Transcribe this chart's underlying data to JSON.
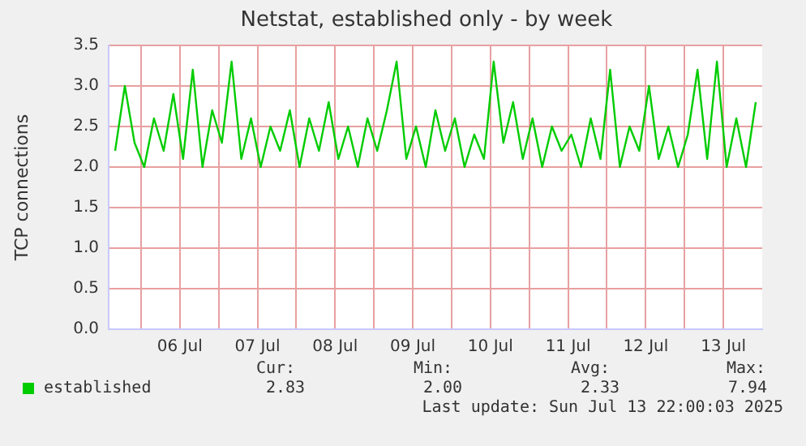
{
  "chart_data": {
    "type": "line",
    "title": "Netstat, established only - by week",
    "ylabel": "TCP connections",
    "x": [
      "2025-07-05T16:00",
      "2025-07-05T19:00",
      "2025-07-05T22:00",
      "2025-07-06T01:00",
      "2025-07-06T04:00",
      "2025-07-06T07:00",
      "2025-07-06T10:00",
      "2025-07-06T13:00",
      "2025-07-06T16:00",
      "2025-07-06T19:00",
      "2025-07-06T22:00",
      "2025-07-07T01:00",
      "2025-07-07T04:00",
      "2025-07-07T07:00",
      "2025-07-07T10:00",
      "2025-07-07T13:00",
      "2025-07-07T16:00",
      "2025-07-07T19:00",
      "2025-07-07T22:00",
      "2025-07-08T01:00",
      "2025-07-08T04:00",
      "2025-07-08T07:00",
      "2025-07-08T10:00",
      "2025-07-08T13:00",
      "2025-07-08T16:00",
      "2025-07-08T19:00",
      "2025-07-08T22:00",
      "2025-07-09T01:00",
      "2025-07-09T04:00",
      "2025-07-09T07:00",
      "2025-07-09T10:00",
      "2025-07-09T13:00",
      "2025-07-09T16:00",
      "2025-07-09T19:00",
      "2025-07-09T22:00",
      "2025-07-10T01:00",
      "2025-07-10T04:00",
      "2025-07-10T07:00",
      "2025-07-10T10:00",
      "2025-07-10T13:00",
      "2025-07-10T16:00",
      "2025-07-10T19:00",
      "2025-07-10T22:00",
      "2025-07-11T01:00",
      "2025-07-11T04:00",
      "2025-07-11T07:00",
      "2025-07-11T10:00",
      "2025-07-11T13:00",
      "2025-07-11T16:00",
      "2025-07-11T19:00",
      "2025-07-11T22:00",
      "2025-07-12T01:00",
      "2025-07-12T04:00",
      "2025-07-12T07:00",
      "2025-07-12T10:00",
      "2025-07-12T13:00",
      "2025-07-12T16:00",
      "2025-07-12T19:00",
      "2025-07-12T22:00",
      "2025-07-13T01:00",
      "2025-07-13T04:00",
      "2025-07-13T07:00",
      "2025-07-13T10:00",
      "2025-07-13T13:00",
      "2025-07-13T16:00",
      "2025-07-13T19:00",
      "2025-07-13T22:00"
    ],
    "series": [
      {
        "name": "established",
        "color": "#00cc00",
        "values": [
          2.2,
          3.0,
          2.3,
          2.0,
          2.6,
          2.2,
          2.9,
          2.1,
          3.2,
          2.0,
          2.7,
          2.3,
          3.3,
          2.1,
          2.6,
          2.0,
          2.5,
          2.2,
          2.7,
          2.0,
          2.6,
          2.2,
          2.8,
          2.1,
          2.5,
          2.0,
          2.6,
          2.2,
          2.7,
          3.3,
          2.1,
          2.5,
          2.0,
          2.7,
          2.2,
          2.6,
          2.0,
          2.4,
          2.1,
          3.3,
          2.3,
          2.8,
          2.1,
          2.6,
          2.0,
          2.5,
          2.2,
          2.4,
          2.0,
          2.6,
          2.1,
          3.2,
          2.0,
          2.5,
          2.2,
          3.0,
          2.1,
          2.5,
          2.0,
          2.4,
          3.2,
          2.1,
          3.3,
          2.0,
          2.6,
          2.0,
          2.8
        ]
      }
    ],
    "xlim": [
      "2025-07-05T14:00",
      "2025-07-14T00:00"
    ],
    "xticks": [
      {
        "value": "2025-07-06T00:00",
        "label": null
      },
      {
        "value": "2025-07-06T12:00",
        "label": "06 Jul"
      },
      {
        "value": "2025-07-07T00:00",
        "label": null
      },
      {
        "value": "2025-07-07T12:00",
        "label": "07 Jul"
      },
      {
        "value": "2025-07-08T00:00",
        "label": null
      },
      {
        "value": "2025-07-08T12:00",
        "label": "08 Jul"
      },
      {
        "value": "2025-07-09T00:00",
        "label": null
      },
      {
        "value": "2025-07-09T12:00",
        "label": "09 Jul"
      },
      {
        "value": "2025-07-10T00:00",
        "label": null
      },
      {
        "value": "2025-07-10T12:00",
        "label": "10 Jul"
      },
      {
        "value": "2025-07-11T00:00",
        "label": null
      },
      {
        "value": "2025-07-11T12:00",
        "label": "11 Jul"
      },
      {
        "value": "2025-07-12T00:00",
        "label": null
      },
      {
        "value": "2025-07-12T12:00",
        "label": "12 Jul"
      },
      {
        "value": "2025-07-13T00:00",
        "label": null
      },
      {
        "value": "2025-07-13T12:00",
        "label": "13 Jul"
      }
    ],
    "ylim": [
      0,
      3.5
    ],
    "yticks": [
      {
        "value": 0,
        "label": "0.0"
      },
      0.5,
      {
        "value": 1,
        "label": "1.0"
      },
      1.5,
      {
        "value": 2,
        "label": "2.0"
      },
      2.5,
      {
        "value": 3,
        "label": "3.0"
      },
      3.5
    ],
    "grid": true,
    "legend": "bottom left",
    "marker": "none",
    "line_style": "solid",
    "annotations": [
      "Cur:",
      "Min:",
      "Avg:",
      "Max:",
      "2.83",
      "2.00",
      "2.33",
      "7.94",
      "Last update: Sun Jul 13 22:00:03 2025"
    ]
  }
}
